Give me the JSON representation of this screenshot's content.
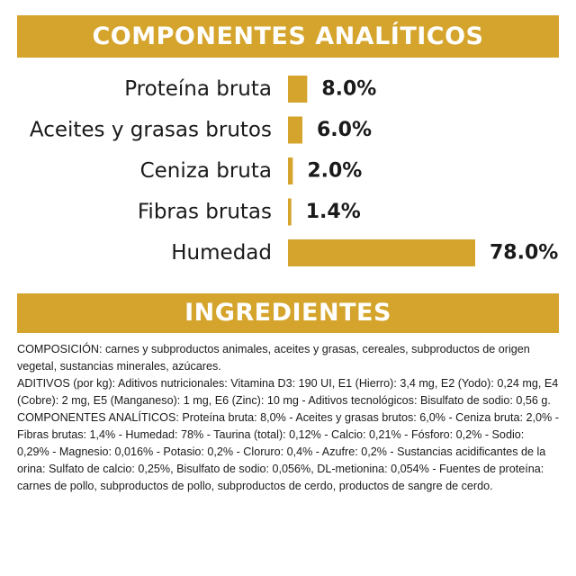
{
  "header": {
    "analytic_title": "COMPONENTES ANALÍTICOS"
  },
  "chart_data": {
    "type": "bar",
    "orientation": "horizontal",
    "categories": [
      "Proteína bruta",
      "Aceites y grasas brutos",
      "Ceniza bruta",
      "Fibras brutas",
      "Humedad"
    ],
    "values": [
      8.0,
      6.0,
      2.0,
      1.4,
      78.0
    ],
    "value_labels": [
      "8.0%",
      "6.0%",
      "2.0%",
      "1.4%",
      "78.0%"
    ],
    "unit": "%",
    "bar_color": "#d5a42c",
    "grid": false,
    "legend": "none"
  },
  "ingredients": {
    "title": "INGREDIENTES",
    "paragraphs": [
      "COMPOSICIÓN: carnes y subproductos animales, aceites y grasas, cereales, subproductos de origen vegetal, sustancias minerales, azúcares.",
      "ADITIVOS (por kg): Aditivos nutricionales: Vitamina D3: 190 UI, E1 (Hierro): 3,4 mg, E2 (Yodo): 0,24 mg, E4 (Cobre): 2 mg, E5 (Manganeso): 1 mg, E6 (Zinc): 10 mg - Aditivos tecnológicos: Bisulfato de sodio: 0,56 g.",
      "COMPONENTES ANALÍTICOS: Proteína bruta: 8,0% - Aceites y grasas brutos: 6,0% - Ceniza bruta: 2,0% - Fibras brutas: 1,4% - Humedad: 78% - Taurina (total): 0,12% - Calcio: 0,21% - Fósforo: 0,2% - Sodio: 0,29% - Magnesio: 0,016% - Potasio: 0,2% - Cloruro: 0,4% - Azufre: 0,2% - Sustancias acidificantes de la orina: Sulfato de calcio: 0,25%, Bisulfato de sodio: 0,056%, DL-metionina: 0,054% - Fuentes de proteína: carnes de pollo, subproductos de pollo, subproductos de cerdo, productos de sangre de cerdo."
    ]
  }
}
